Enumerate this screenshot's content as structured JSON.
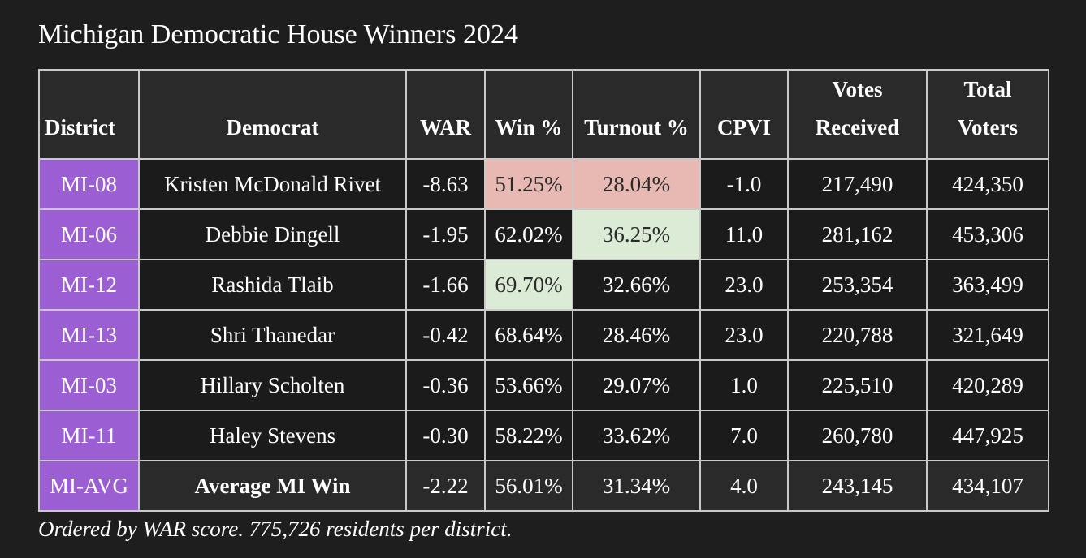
{
  "title": "Michigan Democratic House Winners 2024",
  "footnote": "Ordered by WAR score. 775,726 residents per district.",
  "colors": {
    "background": "#1f1e1e",
    "district_cell": "#9b5fd3",
    "low_highlight": "#e8b8b2",
    "high_highlight": "#dcebd6",
    "border": "#c9c9c9"
  },
  "chart_data": {
    "type": "table",
    "title": "Michigan Democratic House Winners 2024",
    "columns": [
      "District",
      "Democrat",
      "WAR",
      "Win %",
      "Turnout %",
      "CPVI",
      "Votes Received",
      "Total Voters"
    ],
    "headers": [
      {
        "line1": "",
        "line2": "District"
      },
      {
        "line1": "",
        "line2": "Democrat"
      },
      {
        "line1": "",
        "line2": "WAR"
      },
      {
        "line1": "",
        "line2": "Win %"
      },
      {
        "line1": "",
        "line2": "Turnout %"
      },
      {
        "line1": "",
        "line2": "CPVI"
      },
      {
        "line1": "Votes",
        "line2": "Received"
      },
      {
        "line1": "Total",
        "line2": "Voters"
      }
    ],
    "rows": [
      {
        "district": "MI-08",
        "democrat": "Kristen McDonald Rivet",
        "war": "-8.63",
        "win": "51.25%",
        "turnout": "28.04%",
        "cpvi": "-1.0",
        "votes": "217,490",
        "voters": "424,350",
        "win_hl": "low",
        "turnout_hl": "low"
      },
      {
        "district": "MI-06",
        "democrat": "Debbie Dingell",
        "war": "-1.95",
        "win": "62.02%",
        "turnout": "36.25%",
        "cpvi": "11.0",
        "votes": "281,162",
        "voters": "453,306",
        "win_hl": "",
        "turnout_hl": "high"
      },
      {
        "district": "MI-12",
        "democrat": "Rashida Tlaib",
        "war": "-1.66",
        "win": "69.70%",
        "turnout": "32.66%",
        "cpvi": "23.0",
        "votes": "253,354",
        "voters": "363,499",
        "win_hl": "high",
        "turnout_hl": ""
      },
      {
        "district": "MI-13",
        "democrat": "Shri Thanedar",
        "war": "-0.42",
        "win": "68.64%",
        "turnout": "28.46%",
        "cpvi": "23.0",
        "votes": "220,788",
        "voters": "321,649",
        "win_hl": "",
        "turnout_hl": ""
      },
      {
        "district": "MI-03",
        "democrat": "Hillary Scholten",
        "war": "-0.36",
        "win": "53.66%",
        "turnout": "29.07%",
        "cpvi": "1.0",
        "votes": "225,510",
        "voters": "420,289",
        "win_hl": "",
        "turnout_hl": ""
      },
      {
        "district": "MI-11",
        "democrat": "Haley Stevens",
        "war": "-0.30",
        "win": "58.22%",
        "turnout": "33.62%",
        "cpvi": "7.0",
        "votes": "260,780",
        "voters": "447,925",
        "win_hl": "",
        "turnout_hl": ""
      },
      {
        "district": "MI-AVG",
        "democrat": "Average MI Win",
        "war": "-2.22",
        "win": "56.01%",
        "turnout": "31.34%",
        "cpvi": "4.0",
        "votes": "243,145",
        "voters": "434,107",
        "win_hl": "",
        "turnout_hl": "",
        "is_average": true
      }
    ]
  }
}
